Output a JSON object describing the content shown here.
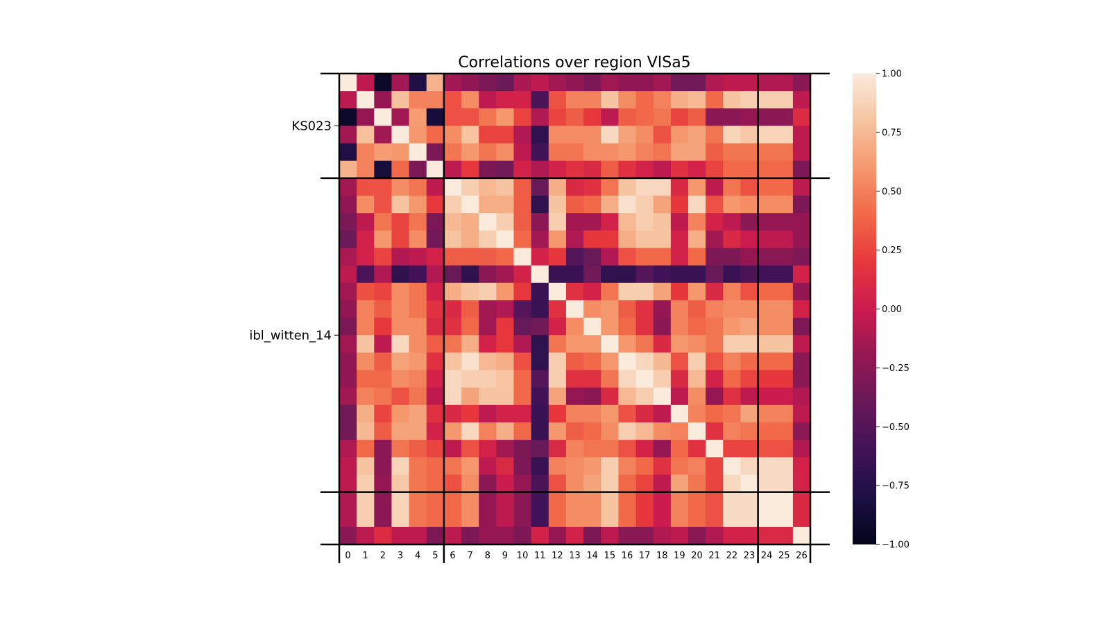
{
  "chart_data": {
    "type": "heatmap",
    "title": "Correlations over region VISa5",
    "x_tick_labels": [
      "0",
      "1",
      "2",
      "3",
      "4",
      "5",
      "6",
      "7",
      "8",
      "9",
      "10",
      "11",
      "12",
      "13",
      "14",
      "15",
      "16",
      "17",
      "18",
      "19",
      "20",
      "21",
      "22",
      "23",
      "24",
      "25",
      "26"
    ],
    "groups": [
      {
        "label": "KS023",
        "start": 0,
        "end": 5
      },
      {
        "label": "ibl_witten_14",
        "start": 6,
        "end": 23
      },
      {
        "label": "",
        "start": 24,
        "end": 26
      }
    ],
    "colorbar": {
      "range": [
        -1.0,
        1.0
      ],
      "ticks": [
        "1.00",
        "0.75",
        "0.50",
        "0.25",
        "0.00",
        "−0.25",
        "−0.50",
        "−0.75",
        "−1.00"
      ],
      "colormap": "rocket"
    },
    "matrix": [
      [
        1.0,
        -0.05,
        -0.92,
        -0.15,
        -0.78,
        0.72,
        -0.15,
        -0.22,
        -0.3,
        -0.38,
        -0.12,
        -0.05,
        -0.15,
        -0.22,
        -0.3,
        -0.15,
        -0.22,
        -0.22,
        -0.15,
        -0.35,
        -0.35,
        -0.1,
        -0.05,
        -0.05,
        -0.1,
        -0.1,
        -0.25
      ],
      [
        -0.05,
        1.0,
        -0.2,
        0.78,
        0.5,
        0.5,
        0.3,
        0.55,
        -0.05,
        0.05,
        0.05,
        -0.55,
        0.3,
        0.5,
        0.5,
        0.8,
        0.55,
        0.4,
        0.5,
        0.7,
        0.75,
        0.4,
        0.8,
        0.85,
        0.85,
        0.85,
        -0.05
      ],
      [
        -0.92,
        -0.2,
        1.0,
        -0.15,
        0.62,
        -0.85,
        0.3,
        0.3,
        0.45,
        0.6,
        0.25,
        -0.1,
        0.25,
        0.35,
        0.2,
        -0.05,
        0.35,
        0.4,
        0.45,
        0.25,
        0.35,
        -0.25,
        -0.25,
        -0.2,
        -0.25,
        -0.25,
        0.12
      ],
      [
        -0.15,
        0.78,
        -0.15,
        1.0,
        0.6,
        0.4,
        0.55,
        0.8,
        0.25,
        0.25,
        -0.1,
        -0.7,
        0.55,
        0.55,
        0.55,
        0.9,
        0.65,
        0.55,
        0.3,
        0.6,
        0.65,
        0.45,
        0.88,
        0.82,
        0.88,
        0.88,
        -0.05
      ],
      [
        -0.78,
        0.5,
        0.62,
        0.6,
        1.0,
        -0.3,
        0.45,
        0.6,
        0.45,
        0.55,
        -0.05,
        -0.6,
        0.45,
        0.45,
        0.55,
        0.55,
        0.6,
        0.5,
        0.45,
        0.65,
        0.65,
        0.35,
        0.45,
        0.45,
        0.45,
        0.45,
        -0.05
      ],
      [
        0.72,
        0.5,
        -0.85,
        0.4,
        -0.3,
        1.0,
        -0.05,
        0.2,
        -0.3,
        -0.35,
        0.05,
        -0.1,
        0.05,
        0.15,
        0.1,
        0.35,
        0.15,
        0.05,
        -0.05,
        0.15,
        0.05,
        0.25,
        0.4,
        0.4,
        0.4,
        0.4,
        -0.3
      ],
      [
        -0.15,
        0.3,
        0.3,
        0.55,
        0.45,
        -0.05,
        1.0,
        0.85,
        0.75,
        0.8,
        0.35,
        -0.4,
        0.7,
        0.1,
        0.15,
        0.45,
        0.8,
        0.9,
        0.9,
        0.1,
        0.6,
        -0.05,
        0.45,
        0.3,
        0.4,
        0.4,
        -0.05
      ],
      [
        -0.22,
        0.55,
        0.3,
        0.8,
        0.6,
        0.2,
        0.85,
        1.0,
        0.7,
        0.7,
        0.35,
        -0.7,
        0.8,
        0.35,
        0.4,
        0.7,
        0.95,
        0.85,
        0.65,
        0.2,
        0.9,
        0.3,
        0.6,
        0.55,
        0.55,
        0.55,
        -0.3
      ],
      [
        -0.3,
        -0.05,
        0.45,
        0.25,
        0.45,
        -0.3,
        0.75,
        0.7,
        1.0,
        0.85,
        0.35,
        -0.25,
        0.85,
        -0.15,
        -0.15,
        0.05,
        0.75,
        0.85,
        0.8,
        -0.05,
        0.5,
        0.05,
        -0.05,
        -0.25,
        -0.2,
        -0.2,
        -0.2
      ],
      [
        -0.38,
        0.05,
        0.6,
        0.25,
        0.55,
        -0.35,
        0.8,
        0.7,
        0.85,
        1.0,
        0.4,
        -0.15,
        0.6,
        -0.1,
        0.2,
        0.2,
        0.7,
        0.8,
        0.8,
        0.05,
        0.7,
        -0.15,
        0.1,
        0.0,
        -0.05,
        -0.05,
        -0.2
      ],
      [
        -0.12,
        0.05,
        0.25,
        -0.1,
        -0.05,
        0.05,
        0.35,
        0.35,
        0.35,
        0.4,
        1.0,
        0.05,
        0.2,
        -0.5,
        -0.4,
        -0.1,
        0.3,
        0.4,
        0.4,
        0.05,
        0.4,
        -0.3,
        -0.3,
        -0.2,
        -0.25,
        -0.25,
        -0.3
      ],
      [
        -0.05,
        -0.55,
        -0.1,
        -0.7,
        -0.6,
        -0.1,
        -0.4,
        -0.7,
        -0.25,
        -0.15,
        0.05,
        1.0,
        -0.65,
        -0.65,
        -0.35,
        -0.7,
        -0.7,
        -0.5,
        -0.6,
        -0.65,
        -0.65,
        -0.4,
        -0.65,
        -0.55,
        -0.6,
        -0.6,
        0.05
      ],
      [
        -0.15,
        0.3,
        0.25,
        0.55,
        0.45,
        0.05,
        0.7,
        0.8,
        0.85,
        0.6,
        0.2,
        -0.65,
        1.0,
        0.15,
        0.05,
        0.45,
        0.85,
        0.85,
        0.65,
        0.2,
        0.6,
        0.1,
        0.5,
        0.3,
        0.4,
        0.4,
        -0.2
      ],
      [
        -0.22,
        0.5,
        0.35,
        0.55,
        0.45,
        0.15,
        0.1,
        0.35,
        -0.15,
        -0.1,
        -0.5,
        -0.65,
        0.15,
        1.0,
        0.55,
        0.6,
        0.35,
        0.15,
        -0.2,
        0.5,
        0.35,
        0.5,
        0.55,
        0.55,
        0.55,
        0.55,
        0.05
      ],
      [
        -0.3,
        0.5,
        0.2,
        0.55,
        0.55,
        0.1,
        0.15,
        0.4,
        -0.15,
        0.2,
        -0.4,
        -0.35,
        0.05,
        0.55,
        1.0,
        0.6,
        0.4,
        0.15,
        -0.25,
        0.5,
        0.4,
        0.45,
        0.6,
        0.65,
        0.55,
        0.55,
        -0.3
      ],
      [
        -0.15,
        0.8,
        -0.05,
        0.9,
        0.55,
        0.35,
        0.45,
        0.7,
        0.05,
        0.2,
        -0.1,
        -0.7,
        0.45,
        0.6,
        0.6,
        1.0,
        0.6,
        0.45,
        0.1,
        0.6,
        0.55,
        0.45,
        0.85,
        0.85,
        0.8,
        0.8,
        -0.05
      ],
      [
        -0.22,
        0.55,
        0.35,
        0.65,
        0.6,
        0.15,
        0.8,
        0.95,
        0.75,
        0.7,
        0.3,
        -0.7,
        0.85,
        0.35,
        0.4,
        0.6,
        1.0,
        0.9,
        0.75,
        0.3,
        0.85,
        0.3,
        0.5,
        0.4,
        0.4,
        0.4,
        -0.25
      ],
      [
        -0.22,
        0.4,
        0.4,
        0.55,
        0.5,
        0.05,
        0.9,
        0.85,
        0.85,
        0.8,
        0.4,
        -0.5,
        0.85,
        0.15,
        0.15,
        0.45,
        0.9,
        1.0,
        0.85,
        0.1,
        0.75,
        0.05,
        0.4,
        0.25,
        0.2,
        0.2,
        -0.25
      ],
      [
        -0.15,
        0.5,
        0.45,
        0.3,
        0.45,
        -0.05,
        0.9,
        0.65,
        0.8,
        0.8,
        0.4,
        -0.6,
        0.65,
        -0.2,
        -0.25,
        0.1,
        0.75,
        0.85,
        1.0,
        -0.05,
        0.55,
        -0.2,
        0.15,
        -0.05,
        0.0,
        0.0,
        -0.1
      ],
      [
        -0.35,
        0.7,
        0.25,
        0.6,
        0.65,
        0.15,
        0.1,
        0.2,
        -0.05,
        0.05,
        0.05,
        -0.65,
        0.2,
        0.5,
        0.5,
        0.6,
        0.3,
        0.1,
        -0.05,
        1.0,
        0.5,
        0.4,
        0.45,
        0.65,
        0.5,
        0.5,
        -0.05
      ],
      [
        -0.35,
        0.75,
        0.35,
        0.65,
        0.65,
        0.05,
        0.6,
        0.9,
        0.5,
        0.7,
        0.4,
        -0.65,
        0.6,
        0.35,
        0.4,
        0.55,
        0.85,
        0.75,
        0.55,
        0.5,
        1.0,
        0.15,
        0.5,
        0.45,
        0.4,
        0.4,
        -0.25
      ],
      [
        -0.1,
        0.4,
        -0.25,
        0.45,
        0.35,
        0.25,
        -0.05,
        0.3,
        0.05,
        -0.15,
        -0.3,
        -0.4,
        0.1,
        0.5,
        0.45,
        0.45,
        0.3,
        0.05,
        -0.2,
        0.4,
        0.15,
        1.0,
        0.25,
        0.25,
        0.3,
        0.3,
        -0.1
      ],
      [
        -0.05,
        0.8,
        -0.25,
        0.88,
        0.45,
        0.4,
        0.45,
        0.6,
        -0.05,
        0.1,
        -0.3,
        -0.65,
        0.5,
        0.55,
        0.6,
        0.85,
        0.5,
        0.4,
        0.15,
        0.45,
        0.5,
        0.25,
        1.0,
        0.9,
        0.92,
        0.92,
        0.05
      ],
      [
        -0.05,
        0.85,
        -0.2,
        0.82,
        0.45,
        0.4,
        0.3,
        0.55,
        -0.25,
        0.0,
        -0.2,
        -0.55,
        0.3,
        0.55,
        0.65,
        0.85,
        0.4,
        0.25,
        -0.05,
        0.65,
        0.45,
        0.25,
        0.9,
        1.0,
        0.92,
        0.92,
        0.05
      ],
      [
        -0.1,
        0.85,
        -0.25,
        0.88,
        0.45,
        0.4,
        0.4,
        0.55,
        -0.2,
        -0.05,
        -0.25,
        -0.6,
        0.4,
        0.55,
        0.55,
        0.8,
        0.4,
        0.2,
        0.0,
        0.5,
        0.4,
        0.3,
        0.92,
        0.92,
        1.0,
        1.0,
        0.1
      ],
      [
        -0.1,
        0.85,
        -0.25,
        0.88,
        0.45,
        0.4,
        0.4,
        0.55,
        -0.2,
        -0.05,
        -0.25,
        -0.6,
        0.4,
        0.55,
        0.55,
        0.8,
        0.4,
        0.2,
        0.0,
        0.5,
        0.4,
        0.3,
        0.92,
        0.92,
        1.0,
        1.0,
        0.1
      ],
      [
        -0.25,
        -0.05,
        0.12,
        -0.05,
        -0.05,
        -0.3,
        -0.05,
        -0.3,
        -0.2,
        -0.2,
        -0.3,
        0.05,
        -0.2,
        0.05,
        -0.3,
        -0.05,
        -0.25,
        -0.25,
        -0.1,
        -0.05,
        -0.25,
        -0.1,
        0.05,
        0.05,
        0.1,
        0.1,
        1.0
      ]
    ]
  }
}
